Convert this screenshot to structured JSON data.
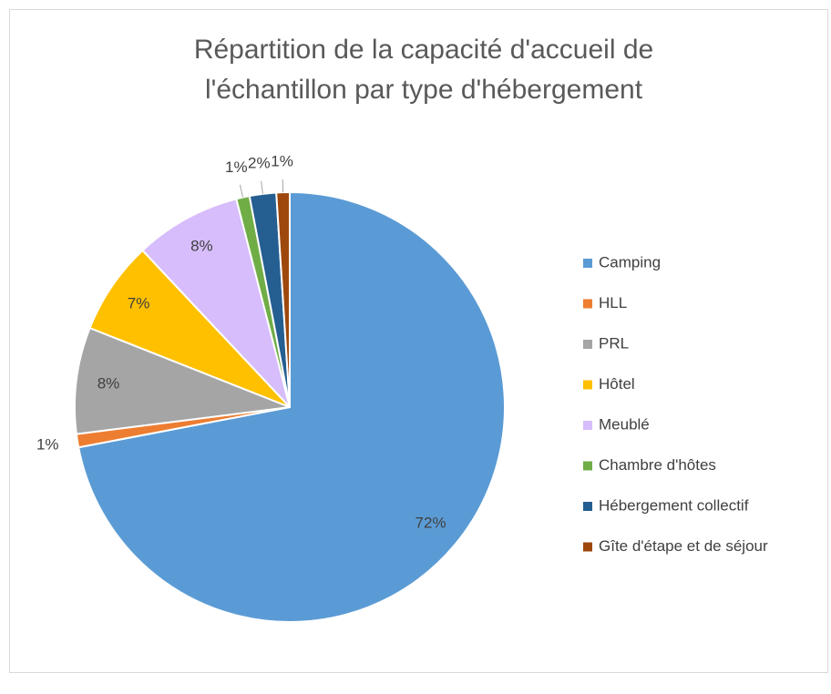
{
  "chart_data": {
    "type": "pie",
    "title": "Répartition de la capacité d'accueil de",
    "title_line2": "l'échantillon par type d'hébergement",
    "categories": [
      "Camping",
      "HLL",
      "PRL",
      "Hôtel",
      "Meublé",
      "Chambre d'hôtes",
      "Hébergement collectif",
      "Gîte d'étape et de séjour"
    ],
    "values": [
      72,
      1,
      8,
      7,
      8,
      1,
      2,
      1
    ],
    "value_labels": [
      "72%",
      "1%",
      "8%",
      "7%",
      "8%",
      "1%",
      "2%",
      "1%"
    ],
    "colors": [
      "#5b9bd5",
      "#ed7d31",
      "#a5a5a5",
      "#ffc000",
      "#d7bdfb",
      "#70ad47",
      "#255e91",
      "#9e480e"
    ],
    "legend": "right"
  }
}
